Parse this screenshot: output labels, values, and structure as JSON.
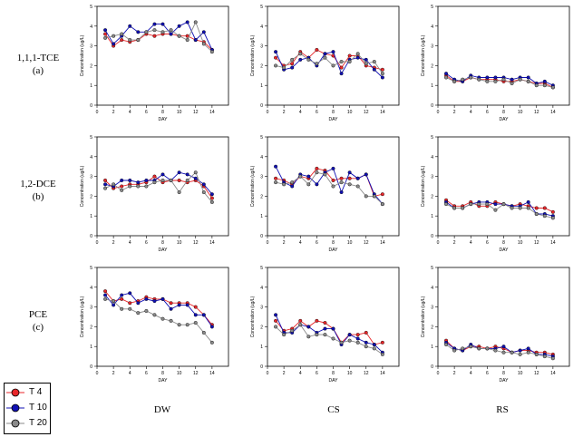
{
  "colors": {
    "t4": "#e8262a",
    "t10": "#1010b4",
    "t20": "#8a8a8a"
  },
  "row_labels": [
    {
      "name": "1,1,1-TCE",
      "tag": "(a)"
    },
    {
      "name": "1,2-DCE",
      "tag": "(b)"
    },
    {
      "name": "PCE",
      "tag": "(c)"
    }
  ],
  "col_labels": [
    "DW",
    "CS",
    "RS"
  ],
  "legend": [
    "T 4",
    "T 10",
    "T 20"
  ],
  "chart_data": [
    {
      "type": "line",
      "row": 0,
      "col": 0,
      "xlabel": "DAY",
      "ylabel": "Concentration (ug/L)",
      "xlim": [
        0,
        16
      ],
      "ylim": [
        0,
        5
      ],
      "xticks": [
        0,
        2,
        4,
        6,
        8,
        10,
        12,
        14
      ],
      "yticks": [
        0,
        1,
        2,
        3,
        4,
        5
      ],
      "x": [
        1,
        2,
        3,
        4,
        5,
        6,
        7,
        8,
        9,
        10,
        11,
        12,
        13,
        14
      ],
      "series": [
        {
          "name": "T 4",
          "values": [
            3.6,
            3.0,
            3.3,
            3.2,
            3.3,
            3.6,
            3.5,
            3.6,
            3.6,
            3.5,
            3.5,
            3.3,
            3.2,
            2.8
          ]
        },
        {
          "name": "T 10",
          "values": [
            3.8,
            3.1,
            3.5,
            4.0,
            3.7,
            3.7,
            4.1,
            4.1,
            3.6,
            4.0,
            4.2,
            3.3,
            3.7,
            2.8
          ]
        },
        {
          "name": "T 20",
          "values": [
            3.4,
            3.5,
            3.6,
            3.3,
            3.3,
            3.7,
            3.8,
            3.7,
            3.8,
            3.5,
            3.3,
            4.2,
            3.1,
            2.7
          ]
        }
      ]
    },
    {
      "type": "line",
      "row": 0,
      "col": 1,
      "xlabel": "DAY",
      "ylabel": "Concentration (ug/L)",
      "xlim": [
        0,
        16
      ],
      "ylim": [
        0,
        5
      ],
      "xticks": [
        0,
        2,
        4,
        6,
        8,
        10,
        12,
        14
      ],
      "yticks": [
        0,
        1,
        2,
        3,
        4,
        5
      ],
      "x": [
        1,
        2,
        3,
        4,
        5,
        6,
        7,
        8,
        9,
        10,
        11,
        12,
        13,
        14
      ],
      "series": [
        {
          "name": "T 4",
          "values": [
            2.4,
            2.0,
            2.1,
            2.7,
            2.4,
            2.8,
            2.6,
            2.5,
            1.9,
            2.5,
            2.5,
            2.0,
            1.9,
            1.8
          ]
        },
        {
          "name": "T 10",
          "values": [
            2.7,
            1.8,
            1.9,
            2.3,
            2.4,
            2.0,
            2.6,
            2.7,
            1.6,
            2.3,
            2.4,
            2.3,
            1.8,
            1.4
          ]
        },
        {
          "name": "T 20",
          "values": [
            2.0,
            1.9,
            2.3,
            2.6,
            2.3,
            2.1,
            2.4,
            2.0,
            2.2,
            2.2,
            2.6,
            2.1,
            2.2,
            1.6
          ]
        }
      ]
    },
    {
      "type": "line",
      "row": 0,
      "col": 2,
      "xlabel": "DAY",
      "ylabel": "Concentration (ug/L)",
      "xlim": [
        0,
        16
      ],
      "ylim": [
        0,
        5
      ],
      "xticks": [
        0,
        2,
        4,
        6,
        8,
        10,
        12,
        14
      ],
      "yticks": [
        0,
        1,
        2,
        3,
        4,
        5
      ],
      "x": [
        1,
        2,
        3,
        4,
        5,
        6,
        7,
        8,
        9,
        10,
        11,
        12,
        13,
        14
      ],
      "series": [
        {
          "name": "T 4",
          "values": [
            1.5,
            1.2,
            1.2,
            1.4,
            1.3,
            1.3,
            1.3,
            1.2,
            1.2,
            1.3,
            1.2,
            1.1,
            1.1,
            0.9
          ]
        },
        {
          "name": "T 10",
          "values": [
            1.6,
            1.3,
            1.2,
            1.5,
            1.4,
            1.4,
            1.4,
            1.4,
            1.3,
            1.4,
            1.4,
            1.1,
            1.2,
            1.0
          ]
        },
        {
          "name": "T 20",
          "values": [
            1.4,
            1.2,
            1.3,
            1.4,
            1.3,
            1.2,
            1.2,
            1.3,
            1.1,
            1.3,
            1.2,
            1.0,
            1.0,
            0.9
          ]
        }
      ]
    },
    {
      "type": "line",
      "row": 1,
      "col": 0,
      "xlabel": "DAY",
      "ylabel": "Concentration (ug/L)",
      "xlim": [
        0,
        16
      ],
      "ylim": [
        0,
        5
      ],
      "xticks": [
        0,
        2,
        4,
        6,
        8,
        10,
        12,
        14
      ],
      "yticks": [
        0,
        1,
        2,
        3,
        4,
        5
      ],
      "x": [
        1,
        2,
        3,
        4,
        5,
        6,
        7,
        8,
        9,
        10,
        11,
        12,
        13,
        14
      ],
      "series": [
        {
          "name": "T 4",
          "values": [
            2.8,
            2.4,
            2.5,
            2.6,
            2.6,
            2.7,
            3.0,
            2.7,
            2.8,
            2.8,
            2.7,
            2.8,
            2.5,
            1.9
          ]
        },
        {
          "name": "T 10",
          "values": [
            2.6,
            2.5,
            2.8,
            2.8,
            2.7,
            2.8,
            2.8,
            3.1,
            2.8,
            3.2,
            3.1,
            2.9,
            2.6,
            2.1
          ]
        },
        {
          "name": "T 20",
          "values": [
            2.4,
            2.6,
            2.3,
            2.5,
            2.5,
            2.5,
            2.7,
            2.8,
            2.8,
            2.2,
            2.8,
            3.2,
            2.2,
            1.7
          ]
        }
      ]
    },
    {
      "type": "line",
      "row": 1,
      "col": 1,
      "xlabel": "DAY",
      "ylabel": "Concentration (ug/L)",
      "xlim": [
        0,
        16
      ],
      "ylim": [
        0,
        5
      ],
      "xticks": [
        0,
        2,
        4,
        6,
        8,
        10,
        12,
        14
      ],
      "yticks": [
        0,
        1,
        2,
        3,
        4,
        5
      ],
      "x": [
        1,
        2,
        3,
        4,
        5,
        6,
        7,
        8,
        9,
        10,
        11,
        12,
        13,
        14
      ],
      "series": [
        {
          "name": "T 4",
          "values": [
            2.9,
            2.8,
            2.6,
            3.0,
            2.9,
            3.4,
            3.3,
            2.8,
            2.9,
            2.9,
            2.9,
            3.1,
            2.0,
            2.1
          ]
        },
        {
          "name": "T 10",
          "values": [
            3.5,
            2.7,
            2.5,
            3.1,
            3.0,
            2.6,
            3.2,
            3.4,
            2.2,
            3.2,
            2.9,
            3.1,
            2.1,
            1.6
          ]
        },
        {
          "name": "T 20",
          "values": [
            2.7,
            2.6,
            2.7,
            3.0,
            2.6,
            3.2,
            3.1,
            2.5,
            2.7,
            2.6,
            2.5,
            2.0,
            2.0,
            1.6
          ]
        }
      ]
    },
    {
      "type": "line",
      "row": 1,
      "col": 2,
      "xlabel": "DAY",
      "ylabel": "Concentration (ug/L)",
      "xlim": [
        0,
        16
      ],
      "ylim": [
        0,
        5
      ],
      "xticks": [
        0,
        2,
        4,
        6,
        8,
        10,
        12,
        14
      ],
      "yticks": [
        0,
        1,
        2,
        3,
        4,
        5
      ],
      "x": [
        1,
        2,
        3,
        4,
        5,
        6,
        7,
        8,
        9,
        10,
        11,
        12,
        13,
        14
      ],
      "series": [
        {
          "name": "T 4",
          "values": [
            1.8,
            1.5,
            1.5,
            1.7,
            1.5,
            1.5,
            1.7,
            1.6,
            1.5,
            1.6,
            1.5,
            1.4,
            1.4,
            1.2
          ]
        },
        {
          "name": "T 10",
          "values": [
            1.7,
            1.4,
            1.4,
            1.6,
            1.7,
            1.7,
            1.6,
            1.6,
            1.5,
            1.5,
            1.7,
            1.1,
            1.1,
            1.0
          ]
        },
        {
          "name": "T 20",
          "values": [
            1.6,
            1.4,
            1.4,
            1.6,
            1.6,
            1.6,
            1.3,
            1.6,
            1.4,
            1.4,
            1.4,
            1.1,
            1.0,
            0.9
          ]
        }
      ]
    },
    {
      "type": "line",
      "row": 2,
      "col": 0,
      "xlabel": "DAY",
      "ylabel": "Concentration (ug/L)",
      "xlim": [
        0,
        16
      ],
      "ylim": [
        0,
        5
      ],
      "xticks": [
        0,
        2,
        4,
        6,
        8,
        10,
        12,
        14
      ],
      "yticks": [
        0,
        1,
        2,
        3,
        4,
        5
      ],
      "x": [
        1,
        2,
        3,
        4,
        5,
        6,
        7,
        8,
        9,
        10,
        11,
        12,
        13,
        14
      ],
      "series": [
        {
          "name": "T 4",
          "values": [
            3.8,
            3.3,
            3.4,
            3.2,
            3.3,
            3.5,
            3.4,
            3.4,
            3.2,
            3.2,
            3.2,
            3.0,
            2.6,
            2.1
          ]
        },
        {
          "name": "T 10",
          "values": [
            3.6,
            3.1,
            3.6,
            3.7,
            3.2,
            3.4,
            3.3,
            3.4,
            2.9,
            3.1,
            3.1,
            2.6,
            2.6,
            2.0
          ]
        },
        {
          "name": "T 20",
          "values": [
            3.4,
            3.3,
            2.9,
            2.9,
            2.7,
            2.8,
            2.6,
            2.4,
            2.3,
            2.1,
            2.1,
            2.2,
            1.7,
            1.2
          ]
        }
      ]
    },
    {
      "type": "line",
      "row": 2,
      "col": 1,
      "xlabel": "DAY",
      "ylabel": "Concentration (ug/L)",
      "xlim": [
        0,
        16
      ],
      "ylim": [
        0,
        5
      ],
      "xticks": [
        0,
        2,
        4,
        6,
        8,
        10,
        12,
        14
      ],
      "yticks": [
        0,
        1,
        2,
        3,
        4,
        5
      ],
      "x": [
        1,
        2,
        3,
        4,
        5,
        6,
        7,
        8,
        9,
        10,
        11,
        12,
        13,
        14
      ],
      "series": [
        {
          "name": "T 4",
          "values": [
            2.3,
            1.8,
            1.9,
            2.3,
            2.0,
            2.3,
            2.2,
            1.9,
            1.2,
            1.6,
            1.6,
            1.7,
            1.1,
            1.2
          ]
        },
        {
          "name": "T 10",
          "values": [
            2.6,
            1.7,
            1.7,
            2.1,
            2.0,
            1.7,
            1.9,
            1.9,
            1.1,
            1.6,
            1.4,
            1.2,
            1.1,
            0.7
          ]
        },
        {
          "name": "T 20",
          "values": [
            2.0,
            1.6,
            1.8,
            2.1,
            1.5,
            1.6,
            1.6,
            1.4,
            1.2,
            1.3,
            1.2,
            1.0,
            0.9,
            0.6
          ]
        }
      ]
    },
    {
      "type": "line",
      "row": 2,
      "col": 2,
      "xlabel": "DAY",
      "ylabel": "Concentration (ug/L)",
      "xlim": [
        0,
        16
      ],
      "ylim": [
        0,
        5
      ],
      "xticks": [
        0,
        2,
        4,
        6,
        8,
        10,
        12,
        14
      ],
      "yticks": [
        0,
        1,
        2,
        3,
        4,
        5
      ],
      "x": [
        1,
        2,
        3,
        4,
        5,
        6,
        7,
        8,
        9,
        10,
        11,
        12,
        13,
        14
      ],
      "series": [
        {
          "name": "T 4",
          "values": [
            1.3,
            0.9,
            0.8,
            1.0,
            1.0,
            0.9,
            1.0,
            0.9,
            0.7,
            0.8,
            0.8,
            0.7,
            0.7,
            0.6
          ]
        },
        {
          "name": "T 10",
          "values": [
            1.2,
            0.9,
            0.8,
            1.1,
            0.9,
            0.9,
            0.9,
            1.0,
            0.7,
            0.8,
            0.9,
            0.6,
            0.6,
            0.5
          ]
        },
        {
          "name": "T 20",
          "values": [
            1.1,
            0.8,
            0.9,
            1.0,
            0.9,
            0.9,
            0.8,
            0.7,
            0.7,
            0.6,
            0.7,
            0.6,
            0.5,
            0.4
          ]
        }
      ]
    }
  ]
}
